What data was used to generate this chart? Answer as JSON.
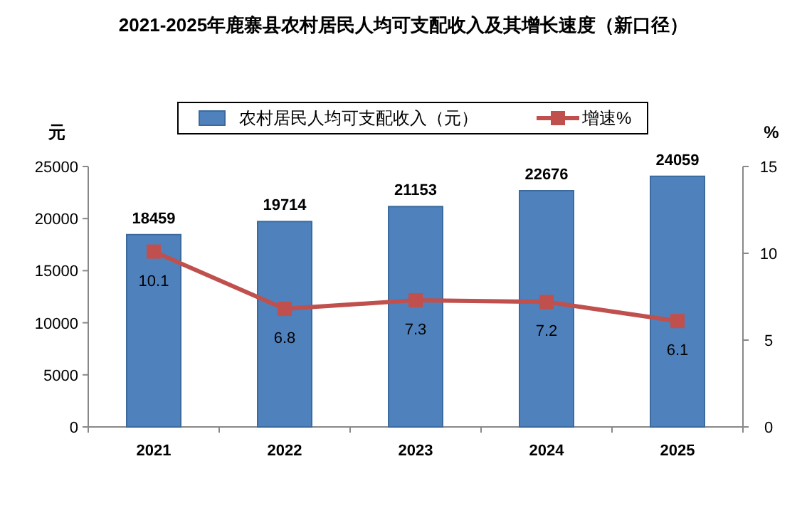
{
  "chart_data": {
    "type": "bar",
    "title": "2021-2025年鹿寨县农村居民人均可支配收入及其增长速度（新口径）",
    "ylabel": "元",
    "y2label": "%",
    "categories": [
      "2021",
      "2022",
      "2023",
      "2024",
      "2025"
    ],
    "series": [
      {
        "name": "农村居民人均可支配收入（元）",
        "color": "#4f81bd",
        "values": [
          18459,
          19714,
          21153,
          22676,
          24059
        ]
      },
      {
        "name": "增速%",
        "type": "line",
        "axis": "y2",
        "color": "#c0504d",
        "marker": "square",
        "values": [
          10.1,
          6.8,
          7.3,
          7.2,
          6.1
        ]
      }
    ],
    "ylim": [
      0,
      25000
    ],
    "yticks": [
      0,
      5000,
      10000,
      15000,
      20000,
      25000
    ],
    "y2lim": [
      0,
      15
    ],
    "y2ticks": [
      0,
      5,
      10,
      15
    ],
    "data_labels": true,
    "legend": "top",
    "grid": false
  }
}
